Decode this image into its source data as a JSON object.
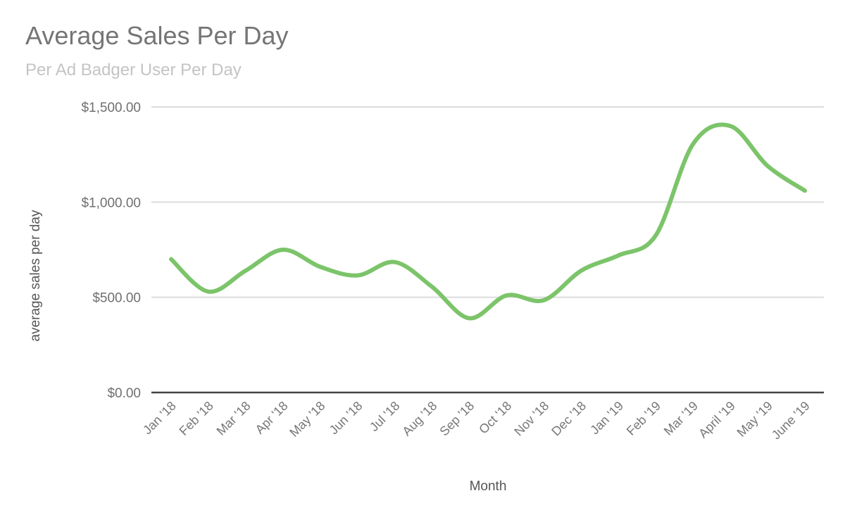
{
  "chart_data": {
    "type": "line",
    "title": "Average Sales Per Day",
    "subtitle": "Per Ad Badger User Per Day",
    "xlabel": "Month",
    "ylabel": "average sales per day",
    "categories": [
      "Jan '18",
      "Feb '18",
      "Mar '18",
      "Apr '18",
      "May '18",
      "Jun '18",
      "Jul '18",
      "Aug '18",
      "Sep '18",
      "Oct '18",
      "Nov '18",
      "Dec '18",
      "Jan '19",
      "Feb '19",
      "Mar '19",
      "April '19",
      "May '19",
      "June '19"
    ],
    "series": [
      {
        "name": "average sales per day",
        "color": "#7cc46a",
        "values": [
          700,
          530,
          640,
          750,
          660,
          615,
          685,
          555,
          390,
          510,
          485,
          640,
          720,
          825,
          1305,
          1400,
          1190,
          1060
        ]
      }
    ],
    "ylim": [
      0,
      1500
    ],
    "yticks": [
      0,
      500,
      1000,
      1500
    ],
    "ytick_labels": [
      "$0.00",
      "$500.00",
      "$1,000.00",
      "$1,500.00"
    ],
    "grid": true,
    "legend": "none"
  }
}
